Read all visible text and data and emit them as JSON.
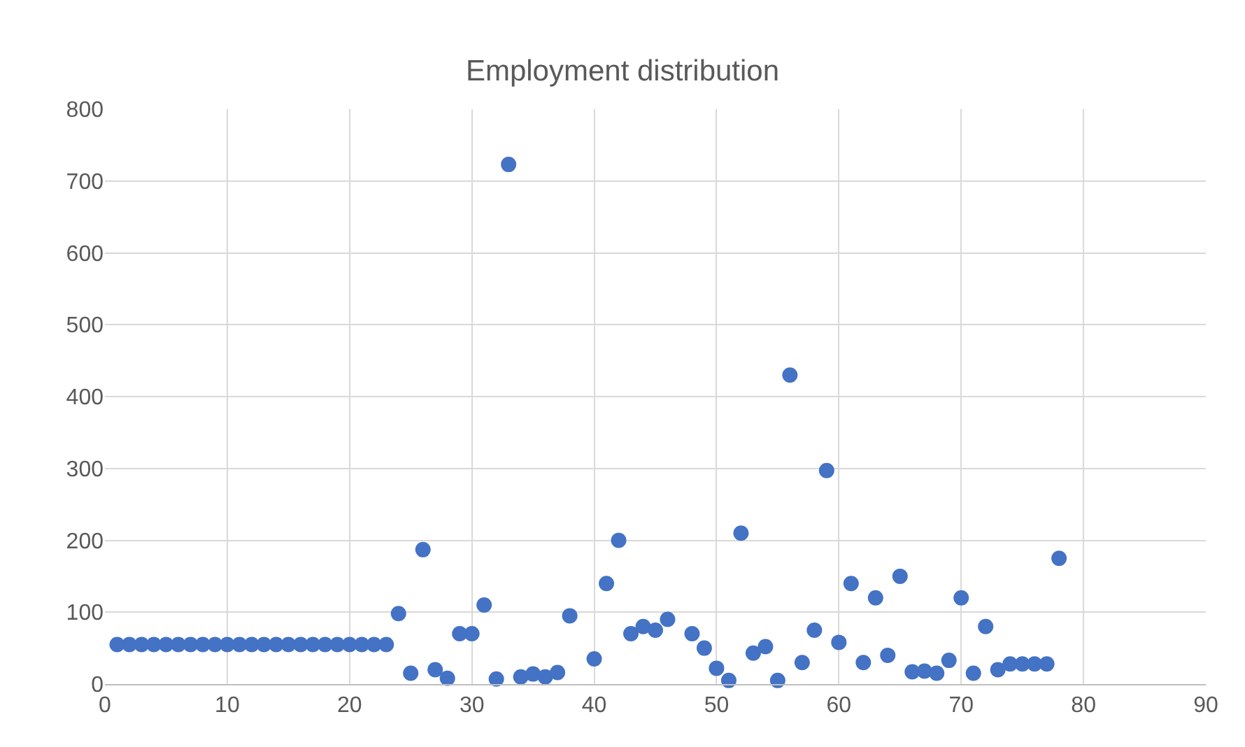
{
  "chart_data": {
    "type": "scatter",
    "title": "Employment distribution",
    "x": [
      1,
      2,
      3,
      4,
      5,
      6,
      7,
      8,
      9,
      10,
      11,
      12,
      13,
      14,
      15,
      16,
      17,
      18,
      19,
      20,
      21,
      22,
      23,
      24,
      25,
      26,
      27,
      28,
      29,
      30,
      31,
      32,
      33,
      34,
      35,
      36,
      37,
      38,
      40,
      41,
      42,
      43,
      44,
      45,
      46,
      48,
      49,
      50,
      51,
      52,
      53,
      54,
      55,
      56,
      57,
      58,
      59,
      60,
      61,
      62,
      63,
      64,
      65,
      66,
      67,
      68,
      69,
      70,
      71,
      72,
      73,
      74,
      75,
      76,
      77,
      78
    ],
    "series": [
      {
        "color": "#4472c4",
        "values": [
          55,
          55,
          55,
          55,
          55,
          55,
          55,
          55,
          55,
          55,
          55,
          55,
          55,
          55,
          55,
          55,
          55,
          55,
          55,
          55,
          55,
          55,
          55,
          98,
          15,
          187,
          20,
          8,
          70,
          70,
          110,
          7,
          723,
          10,
          14,
          10,
          16,
          95,
          35,
          140,
          200,
          70,
          80,
          75,
          90,
          70,
          50,
          22,
          5,
          210,
          43,
          52,
          5,
          430,
          30,
          75,
          297,
          58,
          140,
          30,
          120,
          40,
          150,
          17,
          18,
          15,
          33,
          120,
          15,
          80,
          20,
          28,
          28,
          28,
          28,
          175
        ]
      }
    ],
    "xlim": [
      0,
      90
    ],
    "xticks": [
      0,
      10,
      20,
      30,
      40,
      50,
      60,
      70,
      80,
      90
    ],
    "ylim": [
      0,
      800
    ],
    "yticks": [
      0,
      100,
      200,
      300,
      400,
      500,
      600,
      700,
      800
    ],
    "grid": true,
    "marker": "circle",
    "legend": false
  }
}
